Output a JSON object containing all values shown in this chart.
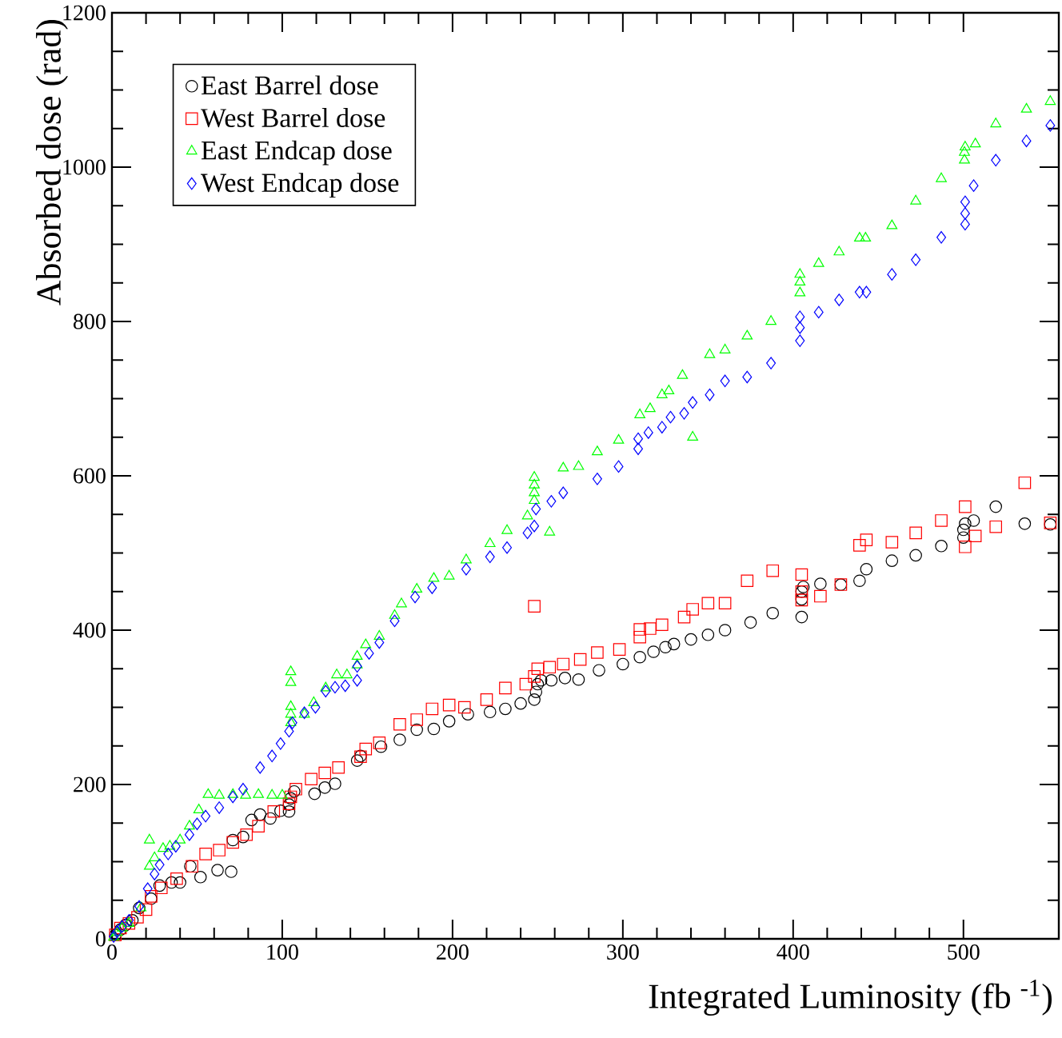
{
  "chart_data": {
    "type": "scatter",
    "xlabel": "Integrated Luminosity (fb $^{-1}$)",
    "ylabel": "Absorbed dose (rad)",
    "xlim": [
      0,
      556
    ],
    "ylim": [
      0,
      1200
    ],
    "xticks": [
      0,
      100,
      200,
      300,
      400,
      500
    ],
    "yticks": [
      0,
      200,
      400,
      600,
      800,
      1000,
      1200
    ],
    "legend": "top left",
    "series": [
      {
        "name": "East Barrel dose",
        "color": "#000000",
        "marker": "circle",
        "x": [
          2,
          5,
          8,
          12,
          16,
          23,
          28,
          35,
          40,
          46,
          52,
          62,
          70,
          71,
          77,
          82,
          87,
          93,
          99,
          104,
          104,
          105,
          107,
          119,
          125,
          131,
          144,
          146,
          158,
          169,
          179,
          189,
          198,
          209,
          222,
          231,
          240,
          248,
          249,
          250,
          252,
          258,
          266,
          274,
          286,
          300,
          310,
          318,
          325,
          330,
          340,
          350,
          360,
          375,
          388,
          405,
          405,
          405,
          406,
          416,
          428,
          439,
          443,
          458,
          472,
          487,
          500,
          500,
          501,
          506,
          519,
          536,
          551
        ],
        "values": [
          5,
          12,
          18,
          24,
          40,
          52,
          69,
          73,
          73,
          94,
          80,
          89,
          87,
          128,
          132,
          154,
          161,
          156,
          166,
          165,
          174,
          182,
          191,
          188,
          196,
          201,
          231,
          237,
          249,
          258,
          271,
          272,
          282,
          291,
          294,
          298,
          305,
          310,
          320,
          330,
          335,
          335,
          338,
          336,
          348,
          356,
          365,
          372,
          378,
          382,
          388,
          394,
          400,
          410,
          422,
          417,
          440,
          450,
          456,
          460,
          459,
          464,
          479,
          490,
          497,
          509,
          520,
          530,
          538,
          542,
          560,
          538,
          537
        ]
      },
      {
        "name": "West Barrel dose",
        "color": "#ff0000",
        "marker": "square",
        "x": [
          2,
          5,
          10,
          15,
          20,
          23,
          29,
          38,
          47,
          55,
          63,
          71,
          79,
          86,
          95,
          104,
          105,
          108,
          117,
          125,
          133,
          146,
          149,
          157,
          169,
          179,
          188,
          198,
          207,
          220,
          231,
          243,
          248,
          248,
          250,
          257,
          265,
          275,
          285,
          298,
          310,
          310,
          316,
          323,
          336,
          341,
          350,
          360,
          373,
          388,
          405,
          405,
          405,
          416,
          428,
          439,
          443,
          458,
          472,
          487,
          501,
          501,
          507,
          519,
          536,
          551
        ],
        "values": [
          5,
          14,
          20,
          28,
          38,
          55,
          66,
          78,
          94,
          110,
          115,
          125,
          135,
          146,
          165,
          175,
          184,
          194,
          207,
          215,
          222,
          236,
          246,
          254,
          278,
          284,
          298,
          303,
          300,
          310,
          325,
          330,
          340,
          431,
          350,
          352,
          356,
          362,
          371,
          375,
          391,
          401,
          402,
          407,
          417,
          427,
          435,
          435,
          464,
          477,
          439,
          450,
          472,
          444,
          459,
          510,
          517,
          514,
          526,
          542,
          508,
          560,
          522,
          534,
          591,
          539
        ]
      },
      {
        "name": "East Endcap dose",
        "color": "#00ff00",
        "marker": "triangle",
        "x": [
          1,
          3,
          6,
          10,
          17,
          22,
          22,
          25,
          30,
          34,
          40,
          45.5,
          51,
          56.5,
          63,
          71,
          78.5,
          86,
          94,
          100,
          105,
          105,
          105,
          105,
          105,
          113,
          118.5,
          125.5,
          132,
          138,
          144,
          144,
          149,
          157,
          166,
          170,
          179,
          189,
          198,
          208,
          222,
          232,
          244,
          248,
          248,
          248,
          248,
          257,
          265,
          274,
          285,
          297.5,
          310,
          316,
          323,
          327,
          335,
          341,
          351,
          360,
          373,
          387,
          404,
          404,
          404,
          415,
          427,
          439,
          442.5,
          458,
          472,
          487,
          500.6,
          500.6,
          501,
          507,
          519,
          537,
          551
        ],
        "values": [
          2,
          8,
          14,
          20,
          40,
          94,
          128,
          105,
          117,
          120,
          128,
          146,
          167,
          187,
          186,
          187,
          186,
          187,
          186,
          186,
          280,
          291,
          301,
          332,
          346,
          291,
          306,
          325,
          342,
          342,
          355,
          366,
          381,
          392,
          419,
          434,
          453,
          467,
          470,
          491,
          512,
          529,
          548,
          568,
          578,
          588,
          598,
          527,
          610,
          612,
          631,
          646,
          679,
          687,
          705,
          710,
          730,
          650,
          757,
          763,
          781,
          800,
          837,
          851,
          861,
          875,
          890,
          908,
          908,
          924,
          956,
          985,
          1009,
          1019,
          1026,
          1030,
          1056,
          1075,
          1085
        ]
      },
      {
        "name": "West Endcap dose",
        "color": "#0000ff",
        "marker": "diamond",
        "x": [
          1,
          3,
          6,
          10,
          16,
          21,
          25,
          28,
          33,
          37.5,
          45.5,
          50,
          55,
          63,
          71,
          77,
          87,
          94,
          99,
          104,
          106,
          113,
          119.5,
          125.5,
          131,
          137,
          144,
          144,
          151,
          157,
          166,
          178,
          188,
          208,
          222,
          232,
          244,
          248,
          249,
          258,
          265,
          285,
          297.5,
          309,
          309,
          315,
          323,
          328,
          336,
          341,
          351,
          360,
          373,
          387,
          404,
          404,
          404,
          415,
          427,
          439,
          443,
          458,
          472,
          487,
          501,
          501,
          501,
          506,
          519,
          537,
          551
        ],
        "values": [
          3,
          9,
          16,
          24,
          42,
          65,
          84,
          96,
          110,
          120,
          135,
          149,
          159,
          170,
          184,
          194,
          222,
          237,
          253,
          269,
          280,
          293,
          300,
          321,
          326,
          328,
          335,
          353,
          370,
          384,
          412,
          443,
          455,
          479,
          495,
          507,
          526,
          535,
          557,
          567,
          578,
          596,
          612,
          635,
          648,
          656,
          663,
          676,
          681,
          695,
          705,
          723,
          728,
          746,
          775,
          792,
          806,
          812,
          828,
          838,
          838,
          861,
          880,
          909,
          926,
          940,
          955,
          976,
          1009,
          1034,
          1054
        ]
      }
    ]
  }
}
